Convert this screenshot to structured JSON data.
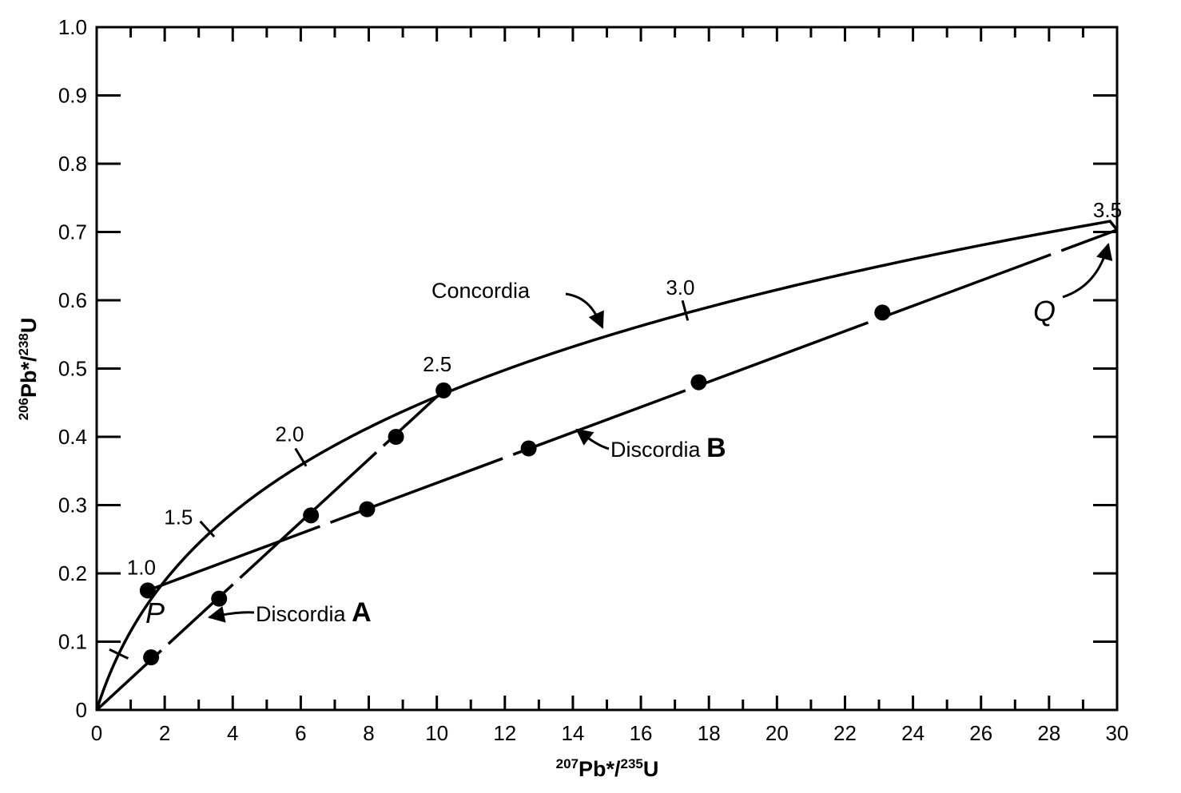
{
  "chart_data": {
    "type": "line",
    "xlabel": {
      "sup1": "207",
      "main1": "Pb*/",
      "sup2": "235",
      "main2": "U"
    },
    "ylabel": {
      "sup1": "206",
      "main1": "Pb*/",
      "sup2": "238",
      "main2": "U"
    },
    "xlim": [
      0,
      30
    ],
    "ylim": [
      0,
      1.0
    ],
    "x_ticks": [
      "0",
      "2",
      "4",
      "6",
      "8",
      "10",
      "12",
      "14",
      "16",
      "18",
      "20",
      "22",
      "24",
      "26",
      "28",
      "30"
    ],
    "y_ticks": [
      "0",
      "0.1",
      "0.2",
      "0.3",
      "0.4",
      "0.5",
      "0.6",
      "0.7",
      "0.8",
      "0.9",
      "1.0"
    ],
    "concordia": {
      "label": "Concordia",
      "age_marks": [
        {
          "age": 0.5,
          "x": 0.65,
          "y": 0.082,
          "label": ""
        },
        {
          "age": 1.0,
          "x": 1.5,
          "y": 0.175,
          "label": "1.0"
        },
        {
          "age": 1.5,
          "x": 3.25,
          "y": 0.265,
          "label": "1.5"
        },
        {
          "age": 2.0,
          "x": 6.0,
          "y": 0.37,
          "label": "2.0"
        },
        {
          "age": 2.5,
          "x": 10.2,
          "y": 0.468,
          "label": "2.5"
        },
        {
          "age": 3.0,
          "x": 17.3,
          "y": 0.585,
          "label": "3.0"
        },
        {
          "age": 3.5,
          "x": 30.0,
          "y": 0.703,
          "label": "3.5"
        }
      ]
    },
    "series": [
      {
        "name": "Discordia A",
        "letter": "A",
        "line": {
          "x": [
            0,
            10.2
          ],
          "y": [
            0,
            0.468
          ]
        },
        "points": [
          {
            "x": 1.6,
            "y": 0.077
          },
          {
            "x": 3.6,
            "y": 0.163
          },
          {
            "x": 6.3,
            "y": 0.285
          },
          {
            "x": 8.8,
            "y": 0.4
          },
          {
            "x": 10.2,
            "y": 0.468
          }
        ]
      },
      {
        "name": "Discordia B",
        "letter": "B",
        "line": {
          "x": [
            1.5,
            30.0
          ],
          "y": [
            0.175,
            0.703
          ]
        },
        "points": [
          {
            "x": 1.5,
            "y": 0.175
          },
          {
            "x": 7.95,
            "y": 0.294
          },
          {
            "x": 12.7,
            "y": 0.383
          },
          {
            "x": 17.7,
            "y": 0.48
          },
          {
            "x": 23.1,
            "y": 0.582
          }
        ]
      }
    ],
    "point_labels": {
      "P": "P",
      "Q": "Q"
    },
    "grid": false,
    "legend": "none"
  }
}
